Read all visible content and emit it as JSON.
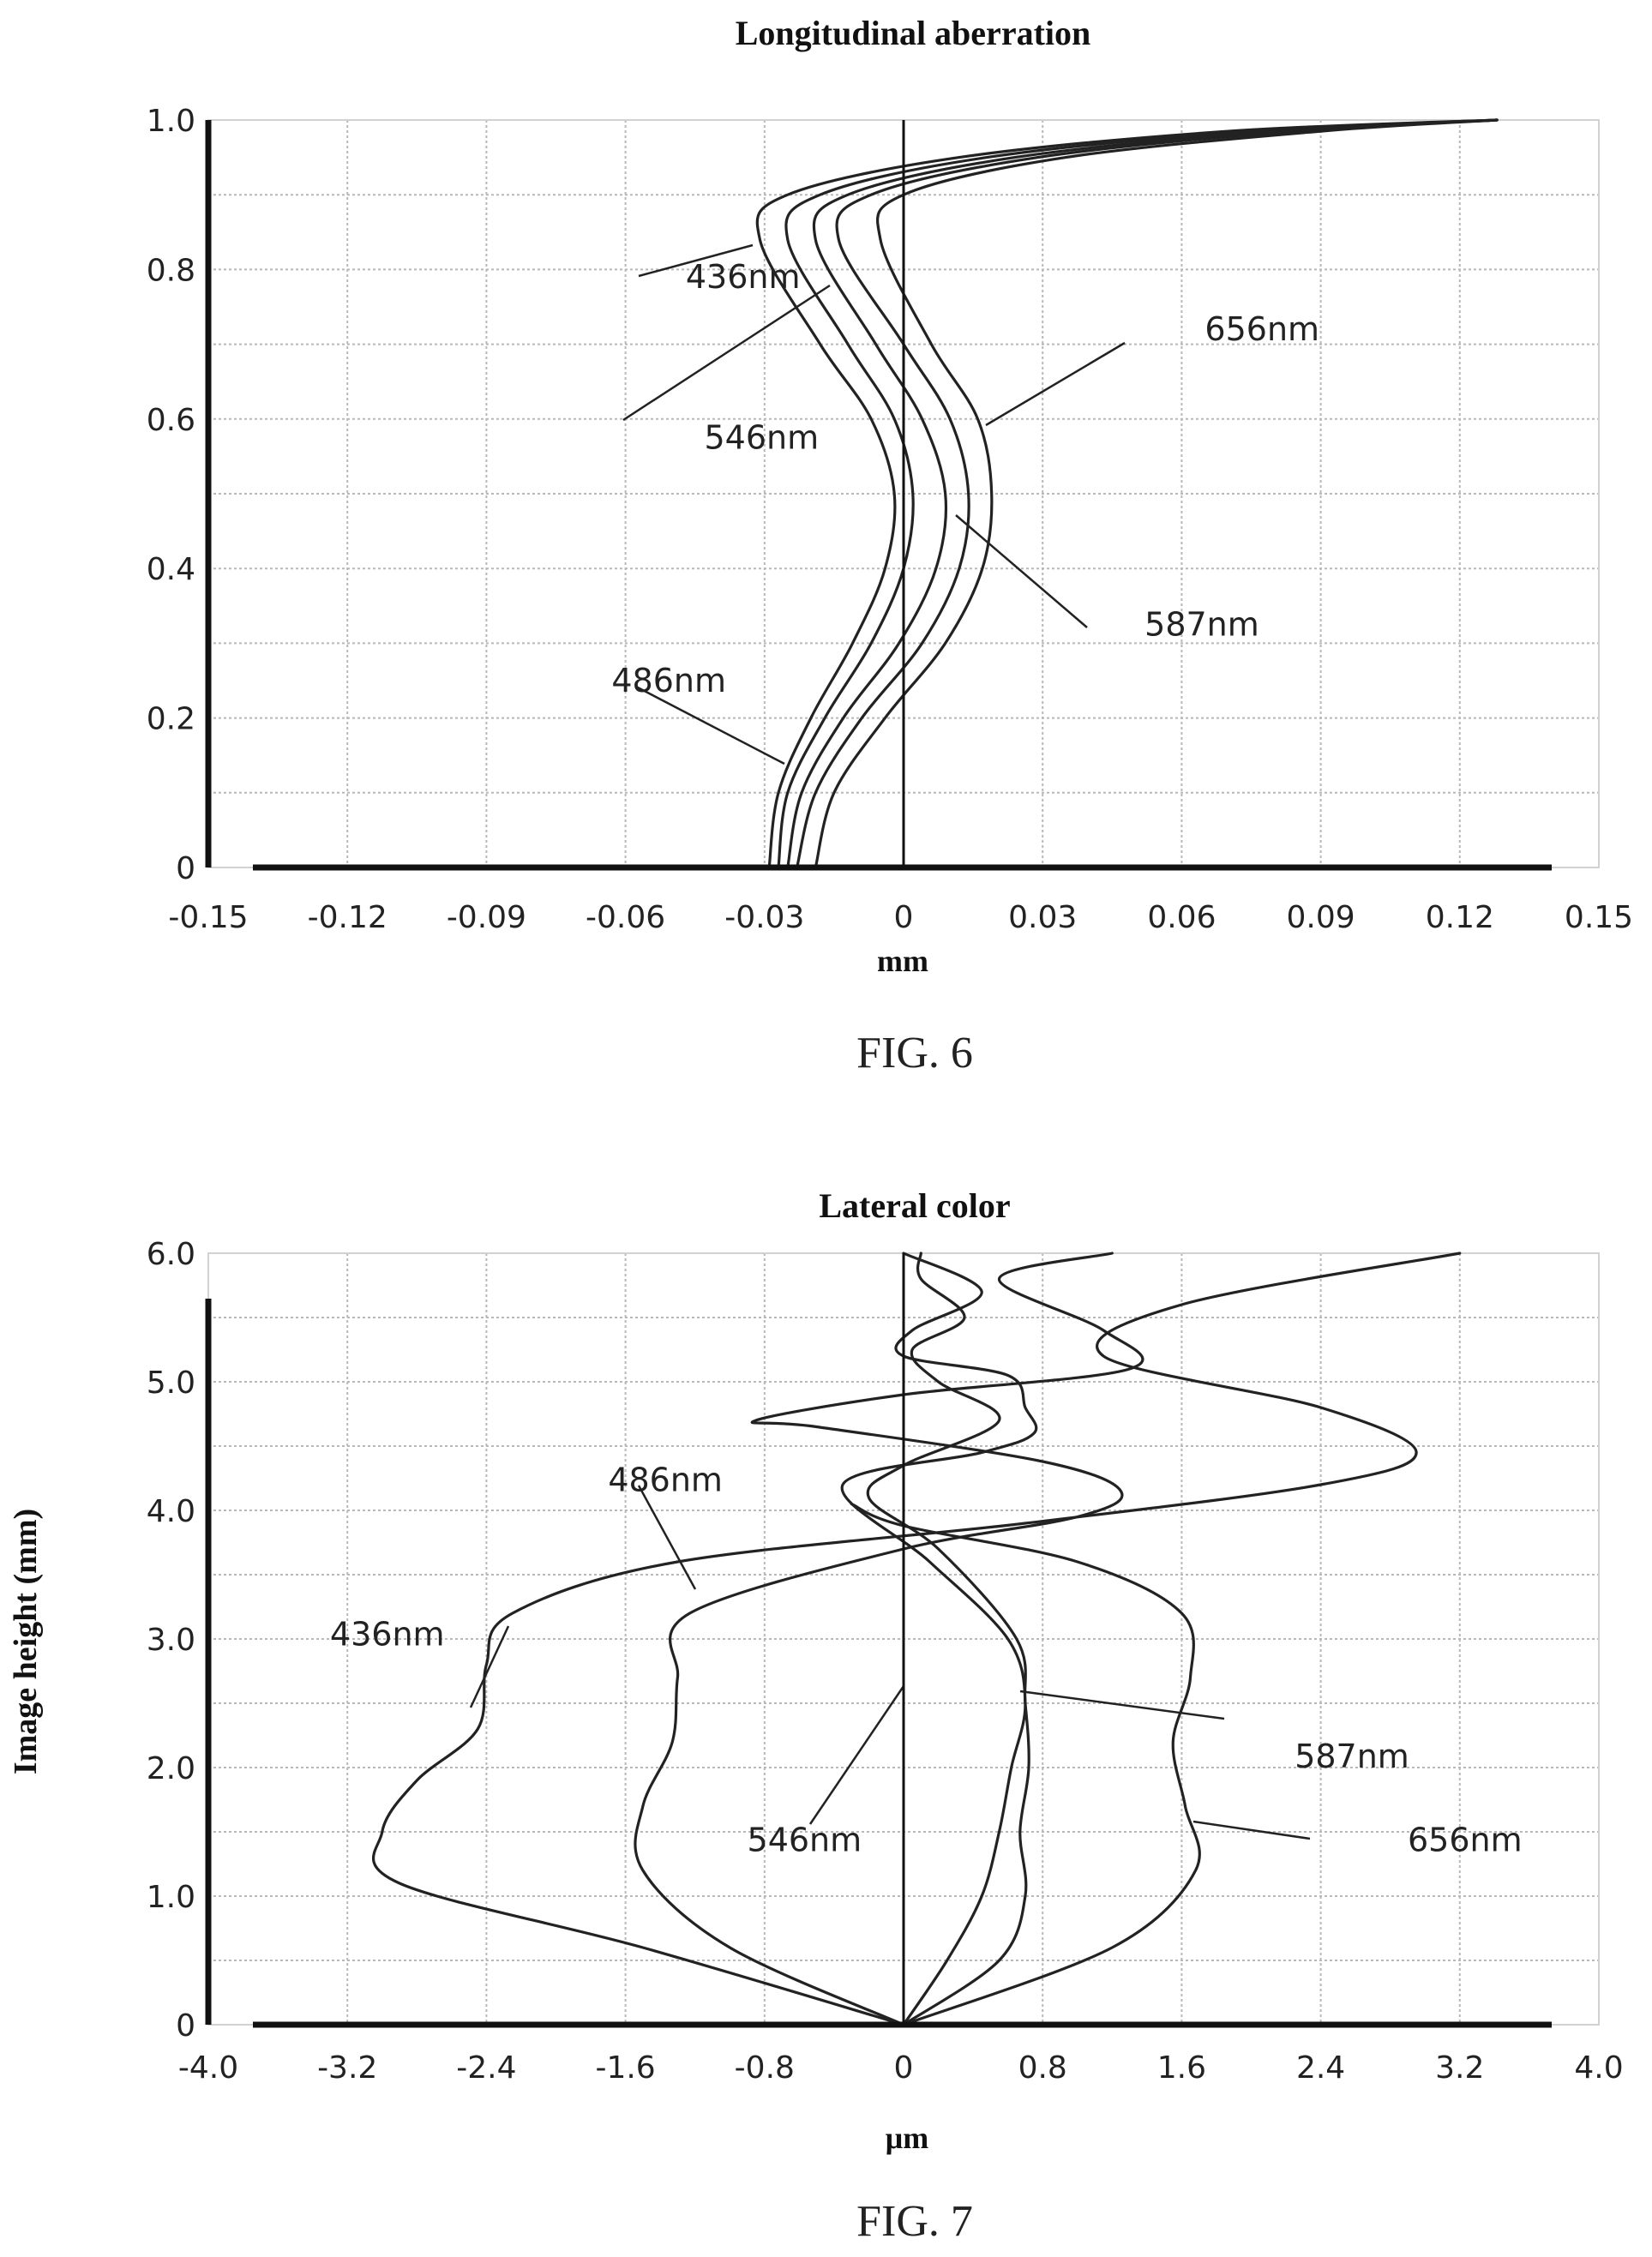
{
  "figures": [
    {
      "caption": "FIG. 6"
    },
    {
      "caption": "FIG. 7"
    }
  ],
  "chart_data": [
    {
      "type": "line",
      "title": "Longitudinal aberration",
      "xlabel": "mm",
      "ylabel": "",
      "xlim": [
        -0.15,
        0.15
      ],
      "ylim": [
        0,
        1.0
      ],
      "xticks": [
        "-0.15",
        "-0.12",
        "-0.09",
        "-0.06",
        "-0.03",
        "0",
        "0.03",
        "0.06",
        "0.09",
        "0.12",
        "0.15"
      ],
      "yticks": [
        "0",
        "0.2",
        "0.4",
        "0.6",
        "0.8",
        "1.0"
      ],
      "grid": true,
      "series": [
        {
          "name": "436nm",
          "x": [
            -0.029,
            -0.027,
            -0.02,
            -0.011,
            -0.004,
            -0.002,
            -0.007,
            -0.018,
            -0.031,
            -0.025,
            0.012,
            0.07,
            0.128
          ],
          "y": [
            0,
            0.1,
            0.2,
            0.3,
            0.4,
            0.5,
            0.6,
            0.7,
            0.84,
            0.9,
            0.95,
            0.985,
            1.0
          ]
        },
        {
          "name": "486nm",
          "x": [
            -0.027,
            -0.025,
            -0.017,
            -0.007,
            0.0,
            0.002,
            -0.002,
            -0.012,
            -0.025,
            -0.018,
            0.018,
            0.075,
            0.128
          ],
          "y": [
            0,
            0.1,
            0.2,
            0.3,
            0.4,
            0.5,
            0.6,
            0.7,
            0.84,
            0.9,
            0.95,
            0.985,
            1.0
          ]
        },
        {
          "name": "546nm",
          "x": [
            -0.025,
            -0.022,
            -0.013,
            -0.001,
            0.007,
            0.009,
            0.004,
            -0.006,
            -0.019,
            -0.012,
            0.024,
            0.08,
            0.128
          ],
          "y": [
            0,
            0.1,
            0.2,
            0.3,
            0.4,
            0.5,
            0.6,
            0.7,
            0.84,
            0.9,
            0.95,
            0.985,
            1.0
          ]
        },
        {
          "name": "587nm",
          "x": [
            -0.023,
            -0.019,
            -0.009,
            0.004,
            0.012,
            0.014,
            0.01,
            0.0,
            -0.014,
            -0.007,
            0.029,
            0.084,
            0.128
          ],
          "y": [
            0,
            0.1,
            0.2,
            0.3,
            0.4,
            0.5,
            0.6,
            0.7,
            0.84,
            0.9,
            0.95,
            0.985,
            1.0
          ]
        },
        {
          "name": "656nm",
          "x": [
            -0.019,
            -0.015,
            -0.004,
            0.009,
            0.017,
            0.019,
            0.016,
            0.006,
            -0.005,
            0.0,
            0.035,
            0.09,
            0.128
          ],
          "y": [
            0,
            0.1,
            0.2,
            0.3,
            0.4,
            0.5,
            0.6,
            0.7,
            0.84,
            0.9,
            0.95,
            0.985,
            1.0
          ]
        }
      ],
      "annotations": [
        {
          "text": "436nm",
          "x": -0.047,
          "y": 0.775
        },
        {
          "text": "546nm",
          "x": -0.043,
          "y": 0.56
        },
        {
          "text": "656nm",
          "x": 0.065,
          "y": 0.705
        },
        {
          "text": "587nm",
          "x": 0.052,
          "y": 0.31
        },
        {
          "text": "486nm",
          "x": -0.063,
          "y": 0.235
        }
      ]
    },
    {
      "type": "line",
      "title": "Lateral color",
      "xlabel": "μm",
      "ylabel": "Image height (mm)",
      "xlim": [
        -4.0,
        4.0
      ],
      "ylim": [
        0,
        6.0
      ],
      "xticks": [
        "-4.0",
        "-3.2",
        "-2.4",
        "-1.6",
        "-0.8",
        "0",
        "0.8",
        "1.6",
        "2.4",
        "3.2",
        "4.0"
      ],
      "yticks": [
        "0",
        "1.0",
        "2.0",
        "3.0",
        "4.0",
        "5.0",
        "6.0"
      ],
      "grid": true,
      "series": [
        {
          "name": "436nm",
          "x": [
            0.0,
            -1.5,
            -2.9,
            -3.0,
            -2.8,
            -2.45,
            -2.4,
            -2.25,
            -1.3,
            0.7,
            2.4,
            2.95,
            2.4,
            1.15,
            1.6,
            3.2
          ],
          "y": [
            0,
            0.6,
            1.1,
            1.5,
            1.9,
            2.3,
            2.8,
            3.2,
            3.6,
            3.9,
            4.2,
            4.45,
            4.8,
            5.2,
            5.6,
            6.0
          ]
        },
        {
          "name": "486nm",
          "x": [
            0.0,
            -1.0,
            -1.5,
            -1.5,
            -1.33,
            -1.3,
            -1.23,
            0.0,
            1.0,
            1.25,
            0.8,
            -0.5,
            -0.85,
            0.0,
            1.3,
            1.15,
            0.55,
            1.2
          ],
          "y": [
            0,
            0.6,
            1.2,
            1.7,
            2.2,
            2.7,
            3.2,
            3.7,
            3.95,
            4.15,
            4.38,
            4.65,
            4.7,
            4.9,
            5.1,
            5.4,
            5.8,
            6.0
          ]
        },
        {
          "name": "546nm",
          "x": [
            0.0,
            0.25,
            0.45,
            0.55,
            0.62,
            0.7,
            0.6,
            0.15,
            -0.35,
            0.45,
            0.75,
            0.7,
            0.6,
            0.0,
            0.05,
            0.45,
            0.0
          ],
          "y": [
            0,
            0.5,
            1.0,
            1.5,
            2.0,
            2.5,
            3.0,
            3.6,
            4.2,
            4.45,
            4.6,
            4.8,
            5.05,
            5.2,
            5.4,
            5.7,
            6.0
          ]
        },
        {
          "name": "587nm",
          "x": [
            0.0,
            0.55,
            0.7,
            0.67,
            0.72,
            0.7,
            0.65,
            0.2,
            -0.2,
            0.0,
            0.55,
            0.2,
            0.05,
            0.35,
            0.1,
            0.1
          ],
          "y": [
            0,
            0.5,
            1.0,
            1.5,
            2.0,
            2.5,
            3.0,
            3.7,
            4.1,
            4.35,
            4.7,
            5.0,
            5.25,
            5.5,
            5.8,
            6.0
          ]
        },
        {
          "name": "656nm",
          "x": [
            0.0,
            1.2,
            1.68,
            1.62,
            1.55,
            1.65,
            1.6,
            1.0,
            0.0,
            -0.3
          ],
          "y": [
            0,
            0.6,
            1.2,
            1.7,
            2.2,
            2.7,
            3.2,
            3.6,
            3.88,
            4.05
          ]
        }
      ],
      "annotations": [
        {
          "text": "486nm",
          "x": -1.7,
          "y": 4.15
        },
        {
          "text": "436nm",
          "x": -3.3,
          "y": 2.95
        },
        {
          "text": "546nm",
          "x": -0.9,
          "y": 1.35
        },
        {
          "text": "587nm",
          "x": 2.25,
          "y": 2.0
        },
        {
          "text": "656nm",
          "x": 2.9,
          "y": 1.35
        }
      ]
    }
  ]
}
